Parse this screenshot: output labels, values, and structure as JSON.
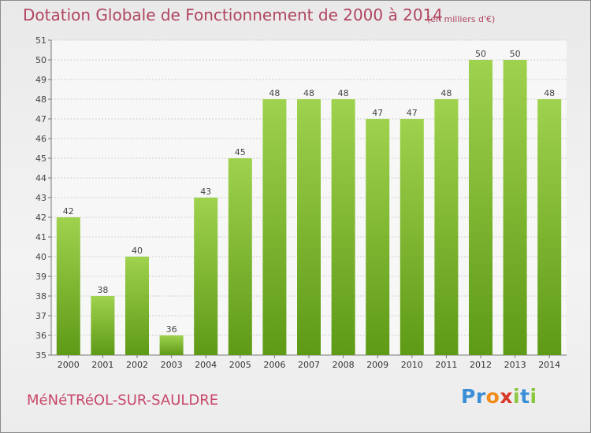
{
  "chart_data": {
    "type": "bar",
    "title": "Dotation Globale de Fonctionnement de 2000 à 2014",
    "subtitle": "(en milliers d'€)",
    "categories": [
      "2000",
      "2001",
      "2002",
      "2003",
      "2004",
      "2005",
      "2006",
      "2007",
      "2008",
      "2009",
      "2010",
      "2011",
      "2012",
      "2013",
      "2014"
    ],
    "values": [
      42,
      38,
      40,
      36,
      43,
      45,
      48,
      48,
      48,
      47,
      47,
      48,
      50,
      50,
      48
    ],
    "ylim": [
      35,
      51
    ],
    "yticks": [
      35,
      36,
      37,
      38,
      39,
      40,
      41,
      42,
      43,
      44,
      45,
      46,
      47,
      48,
      49,
      50,
      51
    ],
    "grid": true,
    "bar_color": "#7cbf2a"
  },
  "footer": {
    "commune": "MéNéTRéOL-SUR-SAULDRE",
    "brand_letters": [
      "P",
      "r",
      "o",
      "x",
      "i",
      "t",
      "i"
    ],
    "brand_colors": [
      "#3a8ed6",
      "#3a8ed6",
      "#f08a1a",
      "#d8382a",
      "#8cc63f",
      "#3a8ed6",
      "#8cc63f"
    ]
  }
}
